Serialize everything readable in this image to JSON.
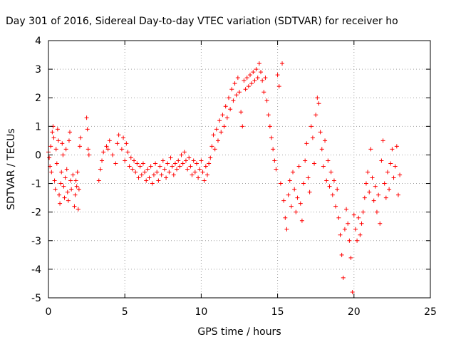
{
  "chart_data": {
    "type": "scatter",
    "title": "Day 301 of 2016, Sidereal Day-to-day VTEC variation (SDTVAR) for receiver ho",
    "xlabel": "GPS time / hours",
    "ylabel": "SDTVAR / TECUs",
    "xlim": [
      0,
      25
    ],
    "ylim": [
      -5,
      4
    ],
    "xticks": [
      0,
      5,
      10,
      15,
      20,
      25
    ],
    "yticks": [
      -5,
      -4,
      -3,
      -2,
      -1,
      0,
      1,
      2,
      3,
      4
    ],
    "grid": true,
    "marker": "+",
    "color": "#ff0000",
    "series": [
      {
        "points": [
          [
            0.0,
            0.1
          ],
          [
            0.05,
            -0.1
          ],
          [
            0.1,
            -0.4
          ],
          [
            0.15,
            0.3
          ],
          [
            0.2,
            -0.6
          ],
          [
            0.25,
            0.8
          ],
          [
            0.3,
            1.0
          ],
          [
            0.35,
            0.6
          ],
          [
            0.4,
            -0.9
          ],
          [
            0.45,
            -1.2
          ],
          [
            0.5,
            0.2
          ],
          [
            0.55,
            -0.3
          ],
          [
            0.6,
            0.9
          ],
          [
            0.65,
            0.5
          ],
          [
            0.7,
            -1.4
          ],
          [
            0.75,
            -1.7
          ],
          [
            0.8,
            -1.0
          ],
          [
            0.85,
            -0.6
          ],
          [
            0.9,
            0.4
          ],
          [
            0.95,
            0.0
          ],
          [
            1.0,
            -1.1
          ],
          [
            1.05,
            -1.5
          ],
          [
            1.1,
            -0.8
          ],
          [
            1.15,
            0.2
          ],
          [
            1.2,
            -0.5
          ],
          [
            1.25,
            -1.3
          ],
          [
            1.3,
            -1.6
          ],
          [
            1.35,
            0.5
          ],
          [
            1.4,
            0.8
          ],
          [
            1.45,
            -0.9
          ],
          [
            1.5,
            -1.2
          ],
          [
            1.6,
            -0.7
          ],
          [
            1.7,
            -1.8
          ],
          [
            1.75,
            -1.4
          ],
          [
            1.8,
            -0.9
          ],
          [
            1.85,
            -1.1
          ],
          [
            1.9,
            -0.6
          ],
          [
            1.95,
            -1.9
          ],
          [
            2.0,
            -1.2
          ],
          [
            2.05,
            0.3
          ],
          [
            2.1,
            0.6
          ],
          [
            2.5,
            1.3
          ],
          [
            2.55,
            0.9
          ],
          [
            2.6,
            0.2
          ],
          [
            2.65,
            0.0
          ],
          [
            3.3,
            -0.9
          ],
          [
            3.4,
            -0.5
          ],
          [
            3.5,
            -0.2
          ],
          [
            3.6,
            0.1
          ],
          [
            3.8,
            0.3
          ],
          [
            3.9,
            0.2
          ],
          [
            4.0,
            0.5
          ],
          [
            4.2,
            0.0
          ],
          [
            4.4,
            -0.3
          ],
          [
            4.5,
            0.4
          ],
          [
            4.6,
            0.7
          ],
          [
            4.8,
            0.2
          ],
          [
            4.9,
            0.6
          ],
          [
            5.0,
            -0.2
          ],
          [
            5.1,
            0.4
          ],
          [
            5.2,
            0.1
          ],
          [
            5.3,
            -0.4
          ],
          [
            5.4,
            -0.1
          ],
          [
            5.5,
            -0.5
          ],
          [
            5.6,
            -0.2
          ],
          [
            5.7,
            -0.6
          ],
          [
            5.8,
            -0.3
          ],
          [
            5.9,
            -0.8
          ],
          [
            6.0,
            -0.4
          ],
          [
            6.1,
            -0.7
          ],
          [
            6.2,
            -0.3
          ],
          [
            6.3,
            -0.6
          ],
          [
            6.4,
            -0.9
          ],
          [
            6.5,
            -0.5
          ],
          [
            6.6,
            -0.8
          ],
          [
            6.7,
            -0.4
          ],
          [
            6.8,
            -1.0
          ],
          [
            6.9,
            -0.7
          ],
          [
            7.0,
            -0.3
          ],
          [
            7.1,
            -0.6
          ],
          [
            7.2,
            -0.9
          ],
          [
            7.3,
            -0.4
          ],
          [
            7.4,
            -0.7
          ],
          [
            7.5,
            -0.2
          ],
          [
            7.6,
            -0.5
          ],
          [
            7.7,
            -0.8
          ],
          [
            7.8,
            -0.3
          ],
          [
            7.9,
            -0.6
          ],
          [
            8.0,
            -0.1
          ],
          [
            8.1,
            -0.4
          ],
          [
            8.2,
            -0.7
          ],
          [
            8.3,
            -0.3
          ],
          [
            8.4,
            -0.5
          ],
          [
            8.5,
            -0.2
          ],
          [
            8.6,
            -0.4
          ],
          [
            8.7,
            0.0
          ],
          [
            8.8,
            -0.3
          ],
          [
            8.9,
            0.1
          ],
          [
            9.0,
            -0.2
          ],
          [
            9.1,
            -0.5
          ],
          [
            9.2,
            -0.1
          ],
          [
            9.3,
            -0.4
          ],
          [
            9.4,
            -0.7
          ],
          [
            9.5,
            -0.2
          ],
          [
            9.6,
            -0.6
          ],
          [
            9.7,
            -0.3
          ],
          [
            9.8,
            -0.8
          ],
          [
            9.9,
            -0.5
          ],
          [
            10.0,
            -0.2
          ],
          [
            10.1,
            -0.6
          ],
          [
            10.2,
            -0.9
          ],
          [
            10.3,
            -0.4
          ],
          [
            10.4,
            -0.7
          ],
          [
            10.5,
            -0.3
          ],
          [
            10.6,
            -0.1
          ],
          [
            10.7,
            0.3
          ],
          [
            10.8,
            0.7
          ],
          [
            10.9,
            0.2
          ],
          [
            11.0,
            0.9
          ],
          [
            11.1,
            0.5
          ],
          [
            11.2,
            1.2
          ],
          [
            11.3,
            0.8
          ],
          [
            11.4,
            1.4
          ],
          [
            11.5,
            1.0
          ],
          [
            11.6,
            1.7
          ],
          [
            11.7,
            1.3
          ],
          [
            11.8,
            2.0
          ],
          [
            11.9,
            1.6
          ],
          [
            12.0,
            2.3
          ],
          [
            12.1,
            1.9
          ],
          [
            12.2,
            2.5
          ],
          [
            12.3,
            2.1
          ],
          [
            12.4,
            2.7
          ],
          [
            12.5,
            2.2
          ],
          [
            12.6,
            1.5
          ],
          [
            12.7,
            1.0
          ],
          [
            12.8,
            2.6
          ],
          [
            12.9,
            2.3
          ],
          [
            13.0,
            2.7
          ],
          [
            13.1,
            2.4
          ],
          [
            13.2,
            2.8
          ],
          [
            13.3,
            2.5
          ],
          [
            13.4,
            2.9
          ],
          [
            13.5,
            2.6
          ],
          [
            13.6,
            3.0
          ],
          [
            13.7,
            2.7
          ],
          [
            13.8,
            3.2
          ],
          [
            13.9,
            2.9
          ],
          [
            14.0,
            2.6
          ],
          [
            14.1,
            2.2
          ],
          [
            14.2,
            2.7
          ],
          [
            14.3,
            1.9
          ],
          [
            14.4,
            1.4
          ],
          [
            14.5,
            1.0
          ],
          [
            14.6,
            0.6
          ],
          [
            14.7,
            0.2
          ],
          [
            14.8,
            -0.2
          ],
          [
            14.9,
            -0.5
          ],
          [
            15.0,
            2.8
          ],
          [
            15.1,
            2.4
          ],
          [
            15.2,
            -1.0
          ],
          [
            15.3,
            3.2
          ],
          [
            15.4,
            -1.6
          ],
          [
            15.5,
            -2.2
          ],
          [
            15.6,
            -2.6
          ],
          [
            15.7,
            -1.4
          ],
          [
            15.8,
            -0.9
          ],
          [
            15.9,
            -1.8
          ],
          [
            16.0,
            -0.6
          ],
          [
            16.1,
            -1.2
          ],
          [
            16.2,
            -2.0
          ],
          [
            16.3,
            -1.5
          ],
          [
            16.4,
            -0.4
          ],
          [
            16.5,
            -1.7
          ],
          [
            16.6,
            -2.3
          ],
          [
            16.7,
            -1.0
          ],
          [
            16.8,
            -0.2
          ],
          [
            16.9,
            0.4
          ],
          [
            17.0,
            -0.8
          ],
          [
            17.1,
            -1.3
          ],
          [
            17.2,
            1.0
          ],
          [
            17.3,
            0.6
          ],
          [
            17.4,
            -0.3
          ],
          [
            17.5,
            1.4
          ],
          [
            17.6,
            2.0
          ],
          [
            17.7,
            1.8
          ],
          [
            17.8,
            0.8
          ],
          [
            17.9,
            0.2
          ],
          [
            18.0,
            -0.4
          ],
          [
            18.1,
            0.5
          ],
          [
            18.2,
            -0.9
          ],
          [
            18.3,
            -0.2
          ],
          [
            18.4,
            -1.1
          ],
          [
            18.5,
            -0.6
          ],
          [
            18.6,
            -1.4
          ],
          [
            18.7,
            -0.9
          ],
          [
            18.8,
            -1.8
          ],
          [
            18.9,
            -1.2
          ],
          [
            19.0,
            -2.2
          ],
          [
            19.1,
            -2.8
          ],
          [
            19.2,
            -3.5
          ],
          [
            19.3,
            -4.3
          ],
          [
            19.4,
            -2.6
          ],
          [
            19.5,
            -1.9
          ],
          [
            19.6,
            -2.4
          ],
          [
            19.7,
            -3.0
          ],
          [
            19.8,
            -3.6
          ],
          [
            19.9,
            -4.8
          ],
          [
            20.0,
            -2.1
          ],
          [
            20.1,
            -2.6
          ],
          [
            20.2,
            -3.0
          ],
          [
            20.3,
            -2.2
          ],
          [
            20.4,
            -2.8
          ],
          [
            20.5,
            -2.4
          ],
          [
            20.6,
            -2.0
          ],
          [
            20.7,
            -1.5
          ],
          [
            20.8,
            -1.0
          ],
          [
            20.9,
            -0.6
          ],
          [
            21.0,
            -1.3
          ],
          [
            21.1,
            0.2
          ],
          [
            21.2,
            -0.8
          ],
          [
            21.3,
            -1.6
          ],
          [
            21.4,
            -1.1
          ],
          [
            21.5,
            -2.0
          ],
          [
            21.6,
            -1.4
          ],
          [
            21.7,
            -2.4
          ],
          [
            21.8,
            -0.2
          ],
          [
            21.9,
            0.5
          ],
          [
            22.0,
            -1.0
          ],
          [
            22.1,
            -1.5
          ],
          [
            22.2,
            -0.6
          ],
          [
            22.3,
            -1.2
          ],
          [
            22.4,
            -0.3
          ],
          [
            22.5,
            0.2
          ],
          [
            22.6,
            -0.8
          ],
          [
            22.7,
            -0.4
          ],
          [
            22.8,
            0.3
          ],
          [
            22.9,
            -1.4
          ],
          [
            23.0,
            -0.7
          ]
        ]
      }
    ]
  }
}
